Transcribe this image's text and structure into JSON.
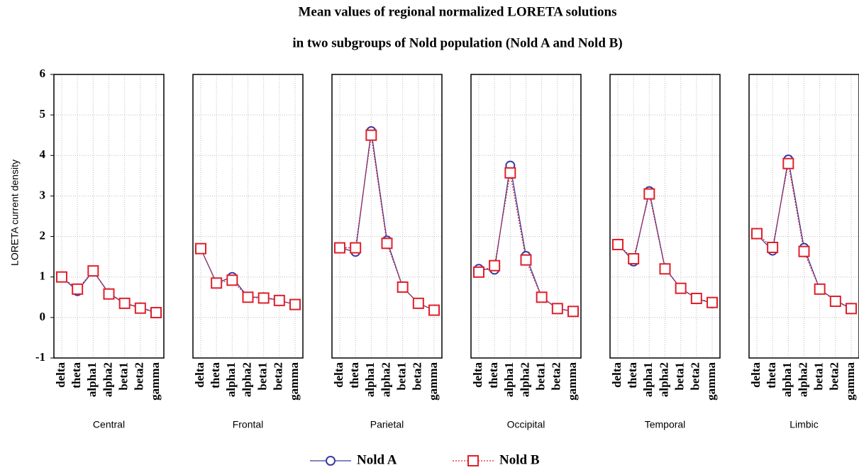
{
  "chart_data": {
    "type": "line",
    "title": [
      "Mean values of regional normalized LORETA solutions",
      "in two subgroups of Nold population (Nold A and Nold B)"
    ],
    "y_label": "LORETA current density",
    "categories": [
      "delta",
      "theta",
      "alpha1",
      "alpha2",
      "beta1",
      "beta2",
      "gamma"
    ],
    "ylim": [
      -1,
      6
    ],
    "yticks": [
      -1,
      0,
      1,
      2,
      3,
      4,
      5,
      6
    ],
    "grid": true,
    "series": [
      {
        "name": "Nold A",
        "color": "#3a3aa0",
        "marker": "circle",
        "linestyle": "solid"
      },
      {
        "name": "Nold B",
        "color": "#e0202a",
        "marker": "square",
        "linestyle": "dotted"
      }
    ],
    "panels": [
      {
        "x_label": "Central",
        "values": [
          [
            1.0,
            0.65,
            1.15,
            0.6,
            0.35,
            0.25,
            0.12
          ],
          [
            1.0,
            0.7,
            1.15,
            0.58,
            0.35,
            0.23,
            0.12
          ]
        ]
      },
      {
        "x_label": "Frontal",
        "values": [
          [
            1.7,
            0.85,
            1.0,
            0.5,
            0.5,
            0.42,
            0.32
          ],
          [
            1.7,
            0.85,
            0.92,
            0.5,
            0.48,
            0.42,
            0.32
          ]
        ]
      },
      {
        "x_label": "Parietal",
        "values": [
          [
            1.72,
            1.62,
            4.6,
            1.9,
            0.75,
            0.35,
            0.18
          ],
          [
            1.72,
            1.72,
            4.5,
            1.83,
            0.75,
            0.35,
            0.18
          ]
        ]
      },
      {
        "x_label": "Occipital",
        "values": [
          [
            1.2,
            1.18,
            3.75,
            1.52,
            0.5,
            0.22,
            0.15
          ],
          [
            1.12,
            1.28,
            3.57,
            1.42,
            0.5,
            0.22,
            0.15
          ]
        ]
      },
      {
        "x_label": "Temporal",
        "values": [
          [
            1.82,
            1.38,
            3.12,
            1.22,
            0.72,
            0.47,
            0.35
          ],
          [
            1.8,
            1.45,
            3.05,
            1.2,
            0.72,
            0.47,
            0.37
          ]
        ]
      },
      {
        "x_label": "Limbic",
        "values": [
          [
            2.05,
            1.65,
            3.9,
            1.72,
            0.7,
            0.42,
            0.22
          ],
          [
            2.07,
            1.73,
            3.8,
            1.63,
            0.7,
            0.4,
            0.22
          ]
        ]
      }
    ]
  }
}
